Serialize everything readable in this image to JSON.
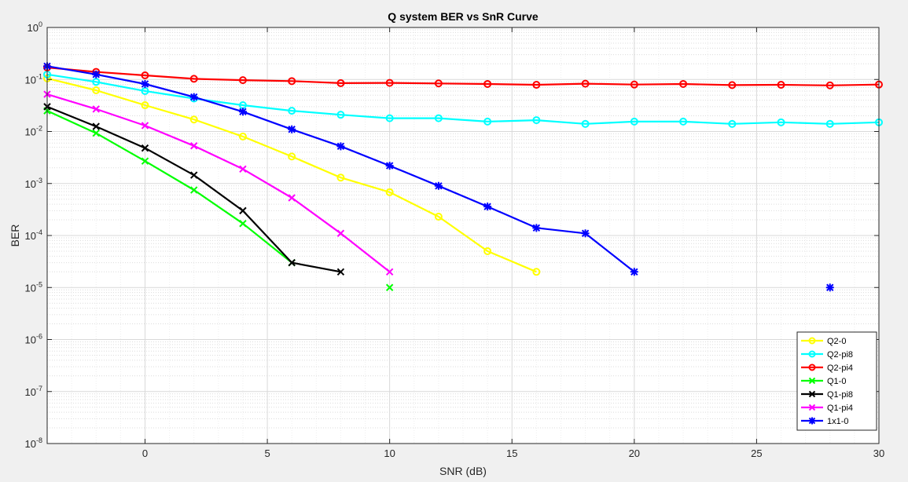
{
  "chart_data": {
    "type": "line",
    "title": "Q system BER vs SnR Curve",
    "xlabel": "SNR (dB)",
    "ylabel": "BER",
    "xlim": [
      -4,
      30
    ],
    "ylim": [
      1e-08,
      1
    ],
    "yscale": "log",
    "grid": true,
    "minor_grid": true,
    "legend_position": "bottom-right",
    "x_ticks": [
      0,
      5,
      10,
      15,
      20,
      25,
      30
    ],
    "x_tick_labels": [
      "0",
      "5",
      "10",
      "15",
      "20",
      "25",
      "30"
    ],
    "y_tick_exponents": [
      0,
      -1,
      -2,
      -3,
      -4,
      -5,
      -6,
      -7,
      -8
    ],
    "y_tick_base": "10",
    "series": [
      {
        "name": "Q2-0",
        "color": "#ffff00",
        "marker": "circle",
        "x": [
          -4,
          -2,
          0,
          2,
          4,
          6,
          8,
          10,
          12,
          14,
          16
        ],
        "y": [
          0.105,
          0.062,
          0.032,
          0.017,
          0.008,
          0.0033,
          0.0013,
          0.00068,
          0.00023,
          5e-05,
          2e-05
        ]
      },
      {
        "name": "Q2-pi8",
        "color": "#00ffff",
        "marker": "circle",
        "x": [
          -4,
          -2,
          0,
          2,
          4,
          6,
          8,
          10,
          12,
          14,
          16,
          18,
          20,
          22,
          24,
          26,
          28,
          30
        ],
        "y": [
          0.125,
          0.09,
          0.06,
          0.043,
          0.032,
          0.025,
          0.021,
          0.018,
          0.018,
          0.0155,
          0.0165,
          0.014,
          0.0155,
          0.0155,
          0.014,
          0.015,
          0.014,
          0.015
        ]
      },
      {
        "name": "Q2-pi4",
        "color": "#ff0000",
        "marker": "circle",
        "x": [
          -4,
          -2,
          0,
          2,
          4,
          6,
          8,
          10,
          12,
          14,
          16,
          18,
          20,
          22,
          24,
          26,
          28,
          30
        ],
        "y": [
          0.17,
          0.14,
          0.12,
          0.103,
          0.097,
          0.093,
          0.085,
          0.086,
          0.084,
          0.082,
          0.079,
          0.083,
          0.08,
          0.082,
          0.078,
          0.079,
          0.077,
          0.08
        ]
      },
      {
        "name": "Q1-0",
        "color": "#00ff00",
        "marker": "x",
        "x": [
          -4,
          -2,
          0,
          2,
          4,
          6,
          10
        ],
        "y": [
          0.025,
          0.0093,
          0.0027,
          0.00075,
          0.00017,
          3e-05,
          1e-05
        ],
        "segments": [
          [
            0,
            5
          ],
          [
            6,
            6
          ]
        ]
      },
      {
        "name": "Q1-pi8",
        "color": "#000000",
        "marker": "x",
        "x": [
          -4,
          -2,
          0,
          2,
          4,
          6,
          8
        ],
        "y": [
          0.03,
          0.0125,
          0.0048,
          0.00145,
          0.0003,
          3e-05,
          2e-05
        ]
      },
      {
        "name": "Q1-pi4",
        "color": "#ff00ff",
        "marker": "x",
        "x": [
          -4,
          -2,
          0,
          2,
          4,
          6,
          8,
          10
        ],
        "y": [
          0.052,
          0.027,
          0.013,
          0.0053,
          0.0019,
          0.00053,
          0.00011,
          2e-05
        ]
      },
      {
        "name": "1x1-0",
        "color": "#0000ff",
        "marker": "asterisk",
        "x": [
          -4,
          -2,
          0,
          2,
          4,
          6,
          8,
          10,
          12,
          14,
          16,
          18,
          20,
          28
        ],
        "y": [
          0.18,
          0.125,
          0.082,
          0.046,
          0.024,
          0.011,
          0.0052,
          0.0022,
          0.0009,
          0.00036,
          0.00014,
          0.00011,
          2e-05,
          1e-05
        ],
        "segments": [
          [
            0,
            12
          ],
          [
            13,
            13
          ]
        ]
      }
    ]
  }
}
